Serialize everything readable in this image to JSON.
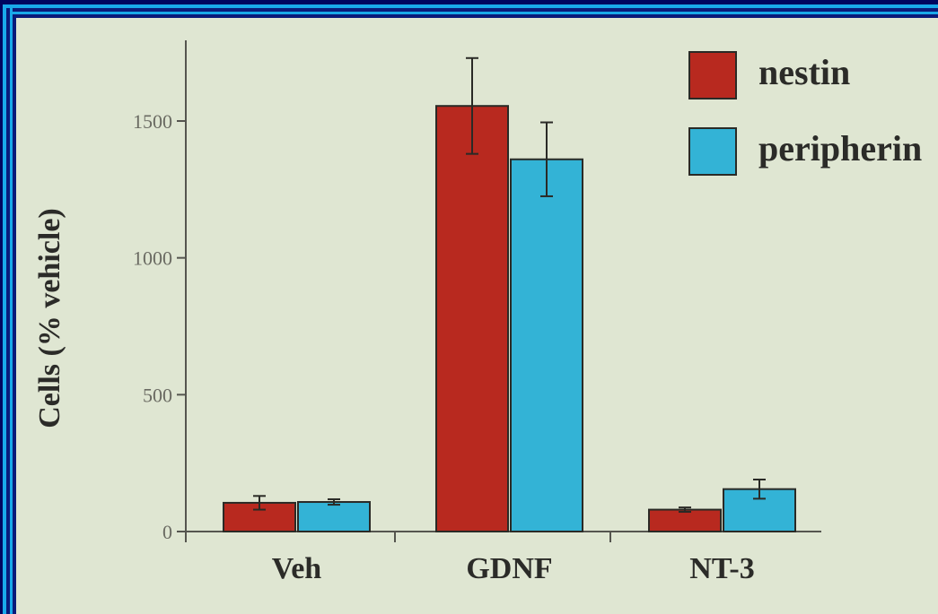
{
  "chart_data": {
    "type": "bar",
    "title": "",
    "xlabel": "",
    "ylabel": "Cells (% vehicle)",
    "ylim": [
      0,
      1800
    ],
    "yticks": [
      0,
      500,
      1000,
      1500
    ],
    "ytick_labels": [
      "0",
      "500",
      "1000",
      "1500"
    ],
    "categories": [
      "Veh",
      "GDNF",
      "NT-3"
    ],
    "series": [
      {
        "name": "nestin",
        "color": "#b8291f",
        "values": [
          105,
          1555,
          80
        ],
        "errors": [
          25,
          175,
          8
        ]
      },
      {
        "name": "peripherin",
        "color": "#33b3d6",
        "values": [
          108,
          1360,
          155
        ],
        "errors": [
          10,
          135,
          35
        ]
      }
    ],
    "legend": "top-right",
    "grid": false
  }
}
